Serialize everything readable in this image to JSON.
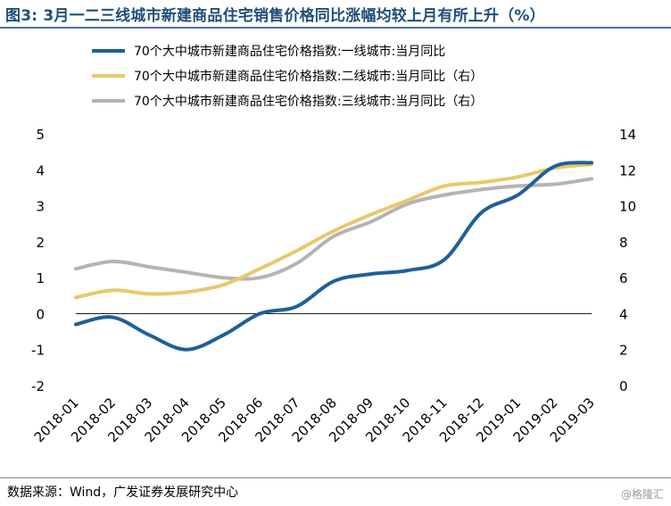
{
  "title": "图3: 3月一二三线城市新建商品住宅销售价格同比涨幅均较上月有所上升（%）",
  "source": "数据来源：Wind，广发证券发展研究中心",
  "watermark": "@格隆汇",
  "chart_data": {
    "type": "line",
    "x": [
      "2018-01",
      "2018-02",
      "2018-03",
      "2018-04",
      "2018-05",
      "2018-06",
      "2018-07",
      "2018-08",
      "2018-09",
      "2018-10",
      "2018-11",
      "2018-12",
      "2019-01",
      "2019-02",
      "2019-03"
    ],
    "y_left": {
      "ylim": [
        -2,
        5
      ],
      "ticks": [
        "-2",
        "-1",
        "0",
        "1",
        "2",
        "3",
        "4",
        "5"
      ]
    },
    "y_right": {
      "ylim": [
        0,
        14
      ],
      "ticks": [
        "0",
        "2",
        "4",
        "6",
        "8",
        "10",
        "12",
        "14"
      ]
    },
    "series": [
      {
        "name": "70个大中城市新建商品住宅价格指数:一线城市:当月同比",
        "axis": "left",
        "color": "#1f5f99",
        "values": [
          -0.3,
          -0.1,
          -0.6,
          -1.0,
          -0.6,
          0.0,
          0.2,
          0.9,
          1.1,
          1.2,
          1.5,
          2.8,
          3.3,
          4.1,
          4.2
        ]
      },
      {
        "name": "70个大中城市新建商品住宅价格指数:二线城市:当月同比（右）",
        "axis": "right",
        "color": "#e8c86a",
        "values": [
          4.9,
          5.3,
          5.1,
          5.2,
          5.6,
          6.5,
          7.5,
          8.6,
          9.5,
          10.3,
          11.1,
          11.3,
          11.6,
          12.1,
          12.3
        ]
      },
      {
        "name": "70个大中城市新建商品住宅价格指数:三线城市:当月同比（右）",
        "axis": "right",
        "color": "#b4b4b4",
        "values": [
          6.5,
          6.9,
          6.6,
          6.3,
          6.0,
          6.0,
          6.8,
          8.3,
          9.1,
          10.1,
          10.6,
          10.9,
          11.1,
          11.2,
          11.5
        ]
      }
    ]
  }
}
